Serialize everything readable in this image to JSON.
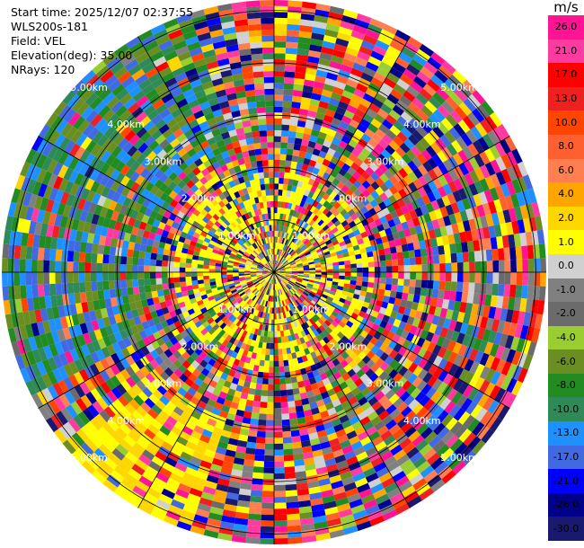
{
  "info": {
    "start_time": "Start time: 2025/12/07 02:37:55",
    "instrument": "WLS200s-181",
    "field": "Field: VEL",
    "elevation": "Elevation(deg): 35.00",
    "nrays": "NRays: 120"
  },
  "chart_data": {
    "type": "heatmap",
    "subtype": "polar-ppi",
    "n_rays": 120,
    "range_rings_km": [
      1,
      2,
      3,
      4,
      5
    ],
    "ring_labels": [
      "1.00km",
      "2.00km",
      "3.00km",
      "4.00km",
      "5.00km"
    ],
    "max_range_km": 5.2,
    "colorbar": {
      "unit": "m/s",
      "ticks": [
        "26.0",
        "21.0",
        "17.0",
        "13.0",
        "10.0",
        "8.0",
        "6.0",
        "4.0",
        "2.0",
        "1.0",
        "0.0",
        "-1.0",
        "-2.0",
        "-4.0",
        "-6.0",
        "-8.0",
        "-10.0",
        "-13.0",
        "-17.0",
        "-21.0",
        "-26.0",
        "-30.0"
      ],
      "colors": [
        "#ff1493",
        "#ff3aa0",
        "#ff0000",
        "#ee2020",
        "#ff4500",
        "#ff6030",
        "#ff7f50",
        "#ffa500",
        "#ffd700",
        "#ffff00",
        "#d0d0d0",
        "#808080",
        "#6b6b6b",
        "#9acd32",
        "#6b8e23",
        "#228b22",
        "#2e8b57",
        "#1e90ff",
        "#4169e1",
        "#0000ff",
        "#00008b",
        "#191970"
      ]
    }
  }
}
